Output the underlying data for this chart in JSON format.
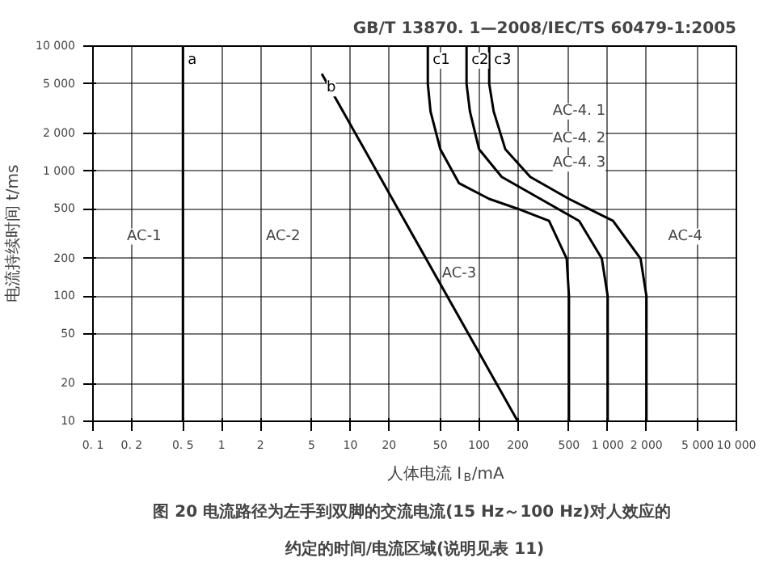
{
  "chart_data": {
    "type": "line",
    "log": "xy",
    "title": "图 20  电流路径为左手到双脚的交流电流(15 Hz～100 Hz)对人效应的约定的时间/电流区域(说明见表 11)",
    "xlabel": "人体电流 I$_{B}$/mA",
    "ylabel": "电流持续时间 t/ms",
    "xlim": [
      0.1,
      10000
    ],
    "ylim": [
      10,
      10000
    ],
    "xticks": [
      {
        "value": 0.1,
        "label": "0. 1"
      },
      {
        "value": 0.2,
        "label": "0. 2"
      },
      {
        "value": 0.5,
        "label": "0. 5"
      },
      1,
      2,
      5,
      10,
      20,
      50,
      100,
      200,
      500,
      {
        "value": 1000,
        "label": "1 000"
      },
      {
        "value": 2000,
        "label": "2 000"
      },
      {
        "value": 5000,
        "label": "5 000"
      },
      {
        "value": 10000,
        "label": "10 000"
      }
    ],
    "yticks": [
      10,
      20,
      50,
      100,
      200,
      500,
      {
        "value": 1000,
        "label": "1 000"
      },
      {
        "value": 2000,
        "label": "2 000"
      },
      {
        "value": 5000,
        "label": "5 000"
      },
      {
        "value": 10000,
        "label": "10 000"
      }
    ],
    "grid": true,
    "marker": "none",
    "line_style": "solid",
    "series": [
      {
        "name": "a",
        "color": "#000000",
        "x": [
          0.5,
          0.5
        ],
        "values": [
          10000,
          10
        ]
      },
      {
        "name": "b",
        "color": "#000000",
        "x": [
          6,
          200
        ],
        "values": [
          6000,
          10
        ]
      },
      {
        "name": "c1",
        "color": "#000000",
        "x": [
          40,
          40,
          42,
          50,
          70,
          120,
          200,
          350,
          480,
          500,
          500
        ],
        "values": [
          10000,
          5000,
          3000,
          1500,
          800,
          600,
          500,
          400,
          200,
          100,
          10
        ]
      },
      {
        "name": "c2",
        "color": "#000000",
        "x": [
          80,
          80,
          85,
          100,
          150,
          300,
          600,
          900,
          1000,
          1000
        ],
        "values": [
          10000,
          5000,
          3000,
          1500,
          900,
          600,
          400,
          200,
          100,
          10
        ]
      },
      {
        "name": "c3",
        "color": "#000000",
        "x": [
          120,
          120,
          130,
          160,
          250,
          500,
          1100,
          1800,
          2000,
          2000
        ],
        "values": [
          10000,
          5000,
          3000,
          1500,
          900,
          600,
          400,
          200,
          100,
          10
        ]
      }
    ],
    "annotations": [
      "GB/T 13870. 1—2008/IEC/TS 60479-1:2005",
      {
        "text": "AC-1",
        "x": 0.25,
        "y": 300
      },
      {
        "text": "AC-2",
        "x": 3,
        "y": 300
      },
      {
        "text": "AC-3",
        "x": 70,
        "y": 150
      },
      {
        "text": "AC-4",
        "x": 4000,
        "y": 300
      },
      {
        "text": "AC-4. 1",
        "x": 600,
        "y": 3000
      },
      {
        "text": "AC-4. 2",
        "x": 600,
        "y": 1800
      },
      {
        "text": "AC-4. 3",
        "x": 600,
        "y": 1150
      }
    ]
  }
}
